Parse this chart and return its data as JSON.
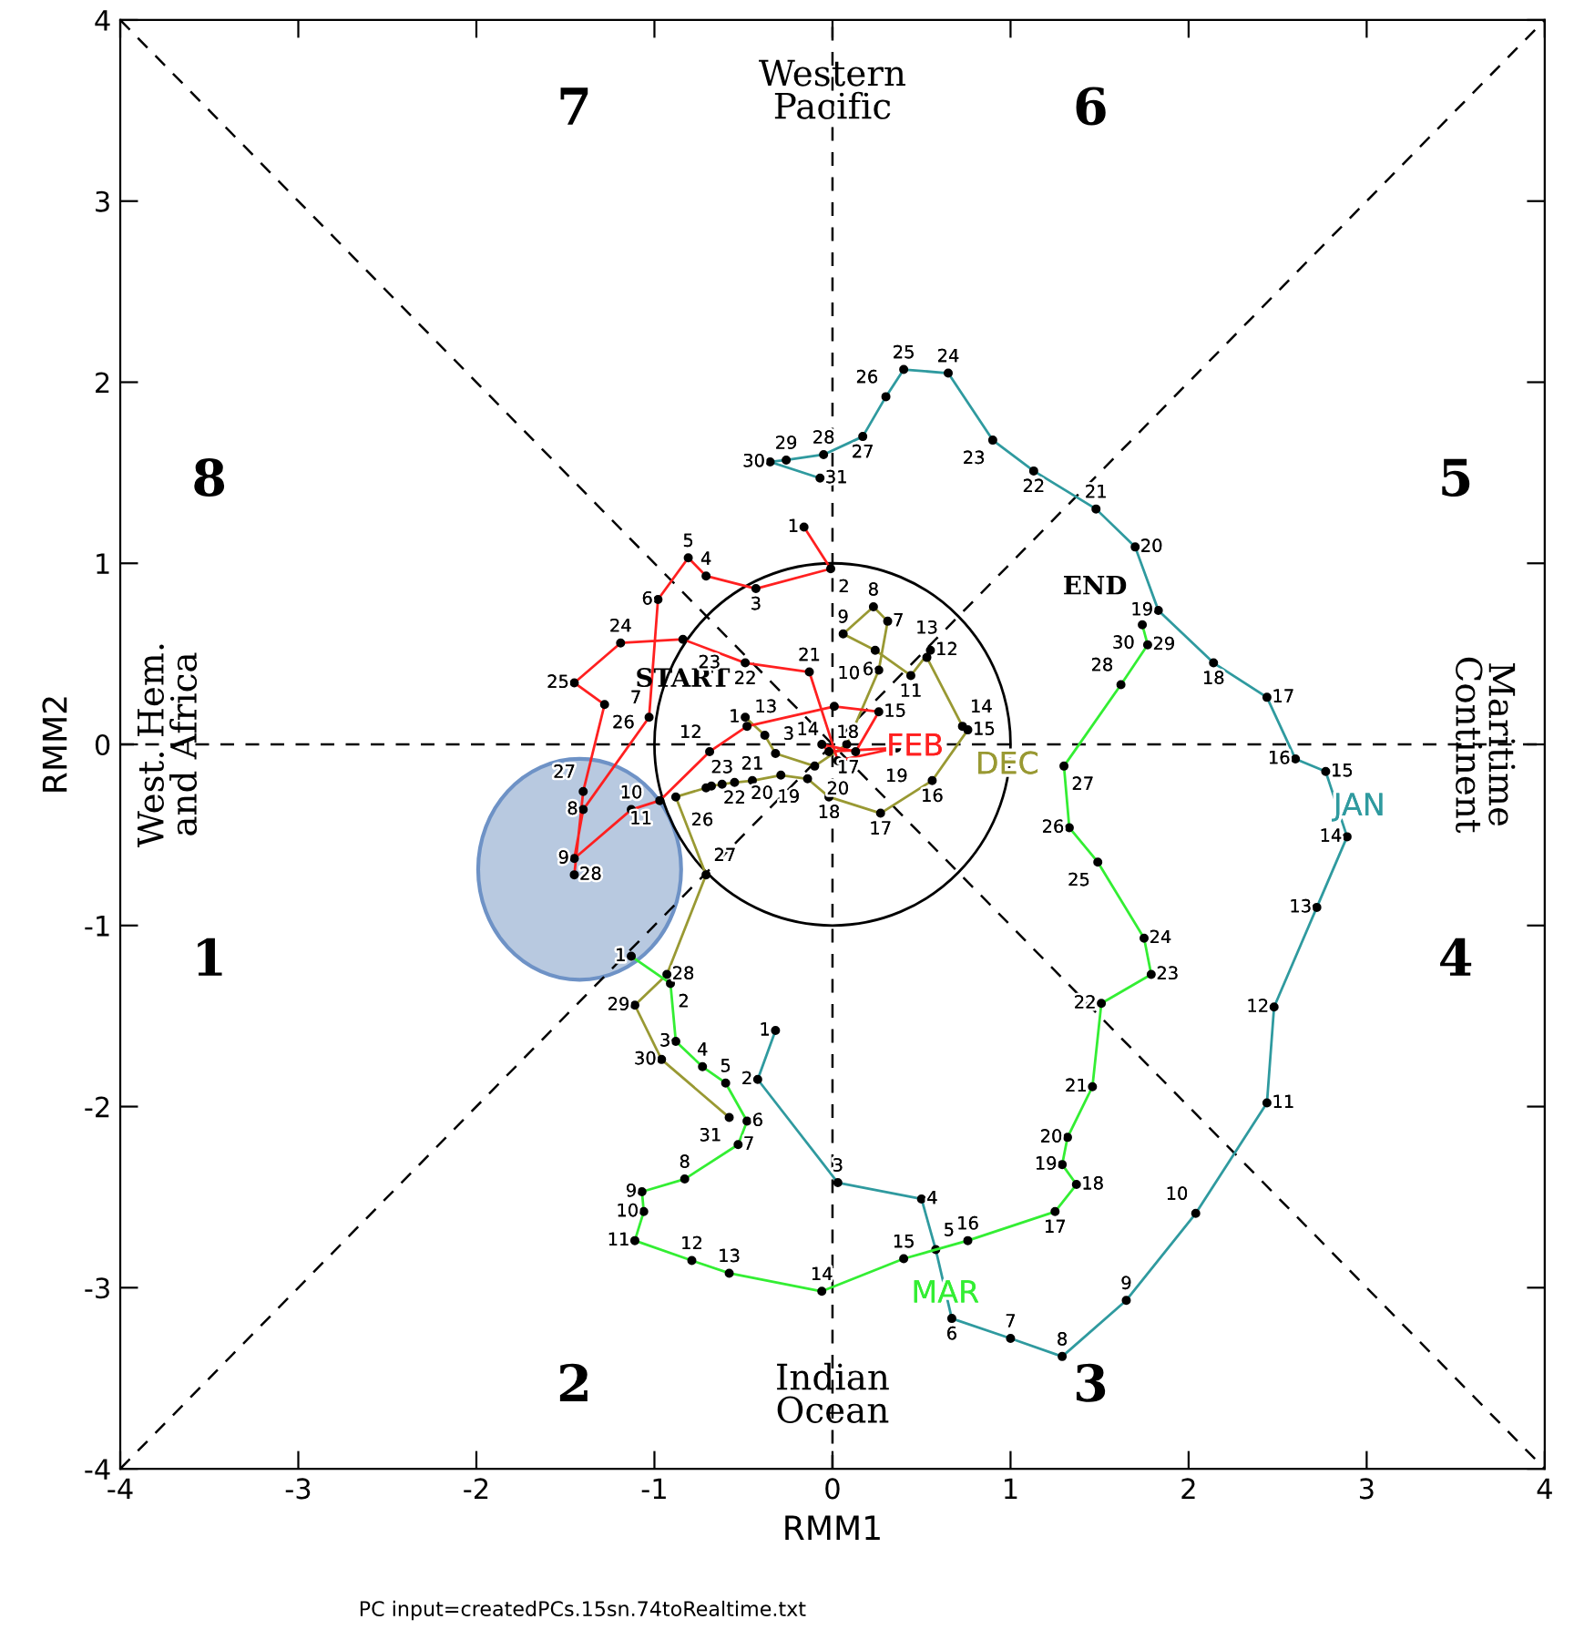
{
  "chart_data": {
    "type": "line",
    "xlabel": "RMM1",
    "ylabel": "RMM2",
    "xlim": [
      -4,
      4
    ],
    "ylim": [
      -4,
      4
    ],
    "xticks": [
      -4,
      -3,
      -2,
      -1,
      0,
      1,
      2,
      3,
      4
    ],
    "yticks": [
      -4,
      -3,
      -2,
      -1,
      0,
      1,
      2,
      3,
      4
    ],
    "marker": "circle",
    "legend": false,
    "ref_lines": [
      {
        "axis": "x",
        "value": 0,
        "line_style": "dashed",
        "color": "#000000"
      }
    ],
    "series": [
      {
        "color": "#000000",
        "line_style": "dashed",
        "marker": "none",
        "x": [
          -4,
          4
        ],
        "values": [
          -4,
          4
        ]
      },
      {
        "color": "#000000",
        "line_style": "dashed",
        "marker": "none",
        "x": [
          -4,
          4
        ],
        "values": [
          4,
          -4
        ]
      },
      {
        "color": "#000000",
        "line_style": "dashed",
        "marker": "none",
        "x": [
          -4,
          4
        ],
        "values": [
          0,
          0
        ]
      },
      {
        "name": "DEC",
        "color": "#999933",
        "x": [
          -0.49,
          -0.38,
          -0.32,
          -0.1,
          0.08,
          0.26,
          0.31,
          0.23,
          0.06,
          0.24,
          0.44,
          0.55,
          0.53,
          0.73,
          0.76,
          0.56,
          0.27,
          -0.02,
          -0.14,
          -0.29,
          -0.45,
          -0.55,
          -0.62,
          -0.68,
          -0.71,
          -0.88,
          -0.71,
          -0.93,
          -1.11,
          -0.96,
          -0.58
        ],
        "values": [
          0.15,
          0.05,
          -0.05,
          -0.12,
          0.0,
          0.41,
          0.68,
          0.76,
          0.61,
          0.52,
          0.38,
          0.52,
          0.48,
          0.1,
          0.08,
          -0.2,
          -0.38,
          -0.29,
          -0.19,
          -0.17,
          -0.2,
          -0.21,
          -0.22,
          -0.23,
          -0.24,
          -0.29,
          -0.72,
          -1.27,
          -1.44,
          -1.74,
          -2.06
        ]
      },
      {
        "name": "JAN",
        "color": "#2f9a9f",
        "x": [
          -0.32,
          -0.42,
          0.03,
          0.5,
          0.58,
          0.67,
          1.0,
          1.29,
          1.65,
          2.04,
          2.44,
          2.48,
          2.72,
          2.89,
          2.77,
          2.6,
          2.44,
          2.14,
          1.83,
          1.7,
          1.48,
          1.13,
          0.9,
          0.65,
          0.4,
          0.3,
          0.17,
          -0.05,
          -0.26,
          -0.35,
          -0.07
        ],
        "values": [
          -1.58,
          -1.85,
          -2.42,
          -2.51,
          -2.79,
          -3.17,
          -3.28,
          -3.38,
          -3.07,
          -2.59,
          -1.98,
          -1.45,
          -0.9,
          -0.51,
          -0.15,
          -0.08,
          0.26,
          0.45,
          0.74,
          1.09,
          1.3,
          1.51,
          1.68,
          2.05,
          2.07,
          1.92,
          1.7,
          1.6,
          1.57,
          1.56,
          1.47
        ]
      },
      {
        "name": "FEB",
        "color": "#ff2020",
        "x": [
          -0.16,
          -0.01,
          -0.43,
          -0.71,
          -0.81,
          -0.98,
          -1.03,
          -1.4,
          -1.45,
          -1.13,
          -0.97,
          -0.69,
          -0.48,
          0.01,
          0.26,
          0.13,
          -0.06,
          -0.02,
          0.36,
          0.03,
          -0.13,
          -0.49,
          -0.84,
          -1.19,
          -1.45,
          -1.28,
          -1.4,
          -1.45
        ],
        "values": [
          1.2,
          0.97,
          0.86,
          0.93,
          1.03,
          0.8,
          0.15,
          -0.36,
          -0.63,
          -0.36,
          -0.31,
          -0.04,
          0.1,
          0.21,
          0.18,
          -0.04,
          0.0,
          -0.04,
          -0.02,
          -0.09,
          0.4,
          0.45,
          0.58,
          0.56,
          0.34,
          0.22,
          -0.26,
          -0.72
        ]
      },
      {
        "name": "MAR",
        "color": "#33ee33",
        "x": [
          -1.13,
          -0.91,
          -0.88,
          -0.73,
          -0.6,
          -0.48,
          -0.53,
          -0.83,
          -1.07,
          -1.06,
          -1.11,
          -0.79,
          -0.58,
          -0.06,
          0.4,
          0.76,
          1.25,
          1.37,
          1.29,
          1.32,
          1.46,
          1.51,
          1.79,
          1.75,
          1.49,
          1.33,
          1.3,
          1.62,
          1.77,
          1.74
        ],
        "values": [
          -1.17,
          -1.32,
          -1.64,
          -1.78,
          -1.87,
          -2.08,
          -2.21,
          -2.4,
          -2.47,
          -2.58,
          -2.74,
          -2.85,
          -2.92,
          -3.02,
          -2.84,
          -2.74,
          -2.58,
          -2.43,
          -2.32,
          -2.17,
          -1.89,
          -1.43,
          -1.27,
          -1.07,
          -0.65,
          -0.46,
          -0.12,
          0.33,
          0.55,
          0.66
        ]
      }
    ],
    "annotations": [
      "1",
      "2",
      "3",
      "4",
      "5",
      "6",
      "7",
      "8",
      "Western\nPacific",
      "Indian\nOcean",
      "West. Hem.\nand Africa",
      "Maritime\nContinent",
      "PC input=createdPCs.15sn.74toRealtime.txt",
      {
        "text": "START",
        "x": -0.49,
        "y": 0.15
      },
      {
        "text": "END",
        "x": 1.74,
        "y": 0.66
      },
      {
        "text": "1",
        "x": -0.49,
        "y": 0.15
      },
      {
        "text": "3",
        "x": -0.32,
        "y": -0.05
      },
      {
        "text": "6",
        "x": 0.26,
        "y": 0.41
      },
      {
        "text": "7",
        "x": 0.31,
        "y": 0.68
      },
      {
        "text": "8",
        "x": 0.23,
        "y": 0.76
      },
      {
        "text": "9",
        "x": 0.06,
        "y": 0.61
      },
      {
        "text": "10",
        "x": 0.24,
        "y": 0.52
      },
      {
        "text": "11",
        "x": 0.44,
        "y": 0.38
      },
      {
        "text": "12",
        "x": 0.55,
        "y": 0.52
      },
      {
        "text": "13",
        "x": 0.53,
        "y": 0.48
      },
      {
        "text": "14",
        "x": 0.73,
        "y": 0.1
      },
      {
        "text": "15",
        "x": 0.76,
        "y": 0.08
      },
      {
        "text": "16",
        "x": 0.56,
        "y": -0.2
      },
      {
        "text": "17",
        "x": 0.27,
        "y": -0.38
      },
      {
        "text": "18",
        "x": -0.02,
        "y": -0.29
      },
      {
        "text": "19",
        "x": -0.14,
        "y": -0.19
      },
      {
        "text": "20",
        "x": -0.29,
        "y": -0.17
      },
      {
        "text": "21",
        "x": -0.45,
        "y": -0.2
      },
      {
        "text": "22",
        "x": -0.55,
        "y": -0.21
      },
      {
        "text": "23",
        "x": -0.62,
        "y": -0.22
      },
      {
        "text": "26",
        "x": -0.88,
        "y": -0.29
      },
      {
        "text": "27",
        "x": -0.71,
        "y": -0.72
      },
      {
        "text": "28",
        "x": -0.93,
        "y": -1.27
      },
      {
        "text": "29",
        "x": -1.11,
        "y": -1.44
      },
      {
        "text": "30",
        "x": -0.96,
        "y": -1.74
      },
      {
        "text": "31",
        "x": -0.58,
        "y": -2.06
      },
      {
        "text": "1",
        "x": -0.32,
        "y": -1.58
      },
      {
        "text": "2",
        "x": -0.42,
        "y": -1.85
      },
      {
        "text": "3",
        "x": 0.03,
        "y": -2.42
      },
      {
        "text": "4",
        "x": 0.5,
        "y": -2.51
      },
      {
        "text": "5",
        "x": 0.58,
        "y": -2.79
      },
      {
        "text": "6",
        "x": 0.67,
        "y": -3.17
      },
      {
        "text": "7",
        "x": 1.0,
        "y": -3.28
      },
      {
        "text": "8",
        "x": 1.29,
        "y": -3.38
      },
      {
        "text": "9",
        "x": 1.65,
        "y": -3.07
      },
      {
        "text": "10",
        "x": 2.04,
        "y": -2.59
      },
      {
        "text": "11",
        "x": 2.44,
        "y": -1.98
      },
      {
        "text": "12",
        "x": 2.48,
        "y": -1.45
      },
      {
        "text": "13",
        "x": 2.72,
        "y": -0.9
      },
      {
        "text": "14",
        "x": 2.89,
        "y": -0.51
      },
      {
        "text": "15",
        "x": 2.77,
        "y": -0.15
      },
      {
        "text": "16",
        "x": 2.6,
        "y": -0.08
      },
      {
        "text": "17",
        "x": 2.44,
        "y": 0.26
      },
      {
        "text": "18",
        "x": 2.14,
        "y": 0.45
      },
      {
        "text": "19",
        "x": 1.83,
        "y": 0.74
      },
      {
        "text": "20",
        "x": 1.7,
        "y": 1.09
      },
      {
        "text": "21",
        "x": 1.48,
        "y": 1.3
      },
      {
        "text": "22",
        "x": 1.13,
        "y": 1.51
      },
      {
        "text": "23",
        "x": 0.9,
        "y": 1.68
      },
      {
        "text": "24",
        "x": 0.65,
        "y": 2.05
      },
      {
        "text": "25",
        "x": 0.4,
        "y": 2.07
      },
      {
        "text": "26",
        "x": 0.3,
        "y": 1.92
      },
      {
        "text": "27",
        "x": 0.17,
        "y": 1.7
      },
      {
        "text": "28",
        "x": -0.05,
        "y": 1.6
      },
      {
        "text": "29",
        "x": -0.26,
        "y": 1.57
      },
      {
        "text": "30",
        "x": -0.35,
        "y": 1.56
      },
      {
        "text": "31",
        "x": -0.07,
        "y": 1.47
      },
      {
        "text": "1",
        "x": -0.16,
        "y": 1.2
      },
      {
        "text": "2",
        "x": -0.01,
        "y": 0.97
      },
      {
        "text": "3",
        "x": -0.43,
        "y": 0.86
      },
      {
        "text": "4",
        "x": -0.71,
        "y": 0.93
      },
      {
        "text": "5",
        "x": -0.81,
        "y": 1.03
      },
      {
        "text": "6",
        "x": -0.98,
        "y": 0.8
      },
      {
        "text": "7",
        "x": -1.03,
        "y": 0.15
      },
      {
        "text": "8",
        "x": -1.4,
        "y": -0.36
      },
      {
        "text": "9",
        "x": -1.45,
        "y": -0.63
      },
      {
        "text": "10",
        "x": -1.13,
        "y": -0.36
      },
      {
        "text": "11",
        "x": -0.97,
        "y": -0.31
      },
      {
        "text": "12",
        "x": -0.69,
        "y": -0.04
      },
      {
        "text": "13",
        "x": -0.48,
        "y": 0.1
      },
      {
        "text": "14",
        "x": 0.01,
        "y": 0.21
      },
      {
        "text": "15",
        "x": 0.26,
        "y": 0.18
      },
      {
        "text": "17",
        "x": -0.06,
        "y": 0.0
      },
      {
        "text": "18",
        "x": -0.02,
        "y": -0.04
      },
      {
        "text": "19",
        "x": 0.36,
        "y": -0.02
      },
      {
        "text": "20",
        "x": 0.03,
        "y": -0.09
      },
      {
        "text": "21",
        "x": -0.13,
        "y": 0.4
      },
      {
        "text": "22",
        "x": -0.49,
        "y": 0.45
      },
      {
        "text": "23",
        "x": -0.84,
        "y": 0.58
      },
      {
        "text": "24",
        "x": -1.19,
        "y": 0.56
      },
      {
        "text": "25",
        "x": -1.45,
        "y": 0.34
      },
      {
        "text": "26",
        "x": -1.28,
        "y": 0.22
      },
      {
        "text": "27",
        "x": -1.4,
        "y": -0.26
      },
      {
        "text": "28",
        "x": -1.45,
        "y": -0.72
      },
      {
        "text": "1",
        "x": -1.13,
        "y": -1.17
      },
      {
        "text": "2",
        "x": -0.91,
        "y": -1.32
      },
      {
        "text": "3",
        "x": -0.88,
        "y": -1.64
      },
      {
        "text": "4",
        "x": -0.73,
        "y": -1.78
      },
      {
        "text": "5",
        "x": -0.6,
        "y": -1.87
      },
      {
        "text": "6",
        "x": -0.48,
        "y": -2.08
      },
      {
        "text": "7",
        "x": -0.53,
        "y": -2.21
      },
      {
        "text": "8",
        "x": -0.83,
        "y": -2.4
      },
      {
        "text": "9",
        "x": -1.07,
        "y": -2.47
      },
      {
        "text": "10",
        "x": -1.06,
        "y": -2.58
      },
      {
        "text": "11",
        "x": -1.11,
        "y": -2.74
      },
      {
        "text": "12",
        "x": -0.79,
        "y": -2.85
      },
      {
        "text": "13",
        "x": -0.58,
        "y": -2.92
      },
      {
        "text": "14",
        "x": -0.06,
        "y": -3.02
      },
      {
        "text": "15",
        "x": 0.4,
        "y": -2.84
      },
      {
        "text": "16",
        "x": 0.76,
        "y": -2.74
      },
      {
        "text": "17",
        "x": 1.25,
        "y": -2.58
      },
      {
        "text": "18",
        "x": 1.37,
        "y": -2.43
      },
      {
        "text": "19",
        "x": 1.29,
        "y": -2.32
      },
      {
        "text": "20",
        "x": 1.32,
        "y": -2.17
      },
      {
        "text": "21",
        "x": 1.46,
        "y": -1.89
      },
      {
        "text": "22",
        "x": 1.51,
        "y": -1.43
      },
      {
        "text": "23",
        "x": 1.79,
        "y": -1.27
      },
      {
        "text": "24",
        "x": 1.75,
        "y": -1.07
      },
      {
        "text": "25",
        "x": 1.49,
        "y": -0.65
      },
      {
        "text": "26",
        "x": 1.33,
        "y": -0.46
      },
      {
        "text": "27",
        "x": 1.3,
        "y": -0.12
      },
      {
        "text": "28",
        "x": 1.62,
        "y": 0.33
      },
      {
        "text": "29",
        "x": 1.77,
        "y": 0.55
      },
      {
        "text": "30",
        "x": 1.74,
        "y": 0.66
      }
    ]
  }
}
